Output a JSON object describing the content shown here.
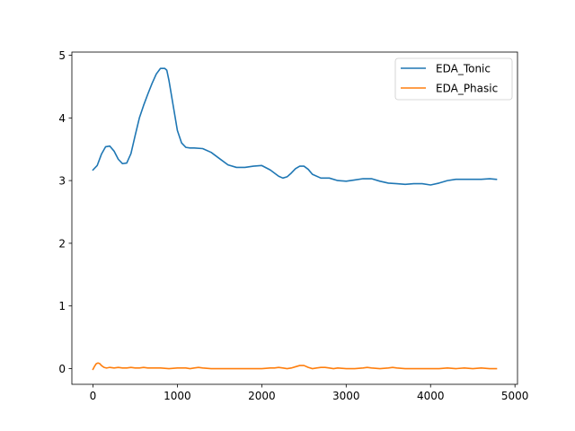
{
  "chart_data": {
    "type": "line",
    "title": "",
    "xlabel": "",
    "ylabel": "",
    "xlim": [
      -250,
      5030
    ],
    "ylim": [
      -0.25,
      5.05
    ],
    "xticks": [
      0,
      1000,
      2000,
      3000,
      4000,
      5000
    ],
    "yticks": [
      0,
      1,
      2,
      3,
      4,
      5
    ],
    "grid": false,
    "legend_position": "top-right",
    "series": [
      {
        "name": "EDA_Tonic",
        "color": "#1f77b4",
        "x": [
          0,
          50,
          100,
          150,
          200,
          250,
          300,
          350,
          400,
          450,
          500,
          550,
          600,
          650,
          700,
          750,
          800,
          850,
          875,
          900,
          950,
          1000,
          1050,
          1100,
          1150,
          1200,
          1300,
          1400,
          1500,
          1600,
          1700,
          1800,
          1900,
          2000,
          2100,
          2200,
          2250,
          2300,
          2350,
          2400,
          2450,
          2500,
          2550,
          2600,
          2700,
          2800,
          2900,
          3000,
          3100,
          3200,
          3300,
          3400,
          3500,
          3600,
          3700,
          3800,
          3900,
          4000,
          4100,
          4200,
          4300,
          4400,
          4500,
          4600,
          4700,
          4780
        ],
        "y": [
          3.17,
          3.24,
          3.42,
          3.54,
          3.55,
          3.47,
          3.34,
          3.27,
          3.28,
          3.43,
          3.72,
          4.0,
          4.2,
          4.38,
          4.55,
          4.7,
          4.79,
          4.79,
          4.76,
          4.6,
          4.2,
          3.8,
          3.6,
          3.53,
          3.52,
          3.52,
          3.51,
          3.45,
          3.35,
          3.25,
          3.21,
          3.21,
          3.23,
          3.24,
          3.17,
          3.07,
          3.04,
          3.06,
          3.12,
          3.19,
          3.23,
          3.23,
          3.18,
          3.1,
          3.04,
          3.04,
          3.0,
          2.99,
          3.01,
          3.03,
          3.03,
          2.99,
          2.96,
          2.95,
          2.94,
          2.95,
          2.95,
          2.93,
          2.96,
          3.0,
          3.02,
          3.02,
          3.02,
          3.02,
          3.03,
          3.02
        ]
      },
      {
        "name": "EDA_Phasic",
        "color": "#ff7f0e",
        "x": [
          0,
          20,
          40,
          60,
          80,
          100,
          130,
          160,
          200,
          250,
          300,
          350,
          400,
          450,
          500,
          550,
          600,
          650,
          700,
          800,
          900,
          1000,
          1100,
          1150,
          1200,
          1250,
          1300,
          1400,
          1600,
          1800,
          2000,
          2100,
          2150,
          2200,
          2250,
          2300,
          2350,
          2400,
          2450,
          2500,
          2550,
          2600,
          2650,
          2700,
          2750,
          2800,
          2850,
          2900,
          3000,
          3100,
          3200,
          3250,
          3300,
          3400,
          3500,
          3550,
          3600,
          3700,
          3800,
          3900,
          4000,
          4100,
          4200,
          4300,
          4400,
          4500,
          4600,
          4700,
          4780
        ],
        "y": [
          -0.01,
          0.04,
          0.08,
          0.09,
          0.08,
          0.05,
          0.02,
          0.01,
          0.02,
          0.01,
          0.02,
          0.01,
          0.01,
          0.02,
          0.01,
          0.01,
          0.02,
          0.01,
          0.01,
          0.01,
          0.0,
          0.01,
          0.01,
          0.0,
          0.01,
          0.02,
          0.01,
          0.0,
          0.0,
          0.0,
          0.0,
          0.01,
          0.01,
          0.02,
          0.01,
          0.0,
          0.01,
          0.03,
          0.05,
          0.05,
          0.02,
          0.0,
          0.01,
          0.02,
          0.02,
          0.01,
          0.0,
          0.01,
          0.0,
          0.0,
          0.01,
          0.02,
          0.01,
          0.0,
          0.01,
          0.02,
          0.01,
          0.0,
          0.0,
          0.0,
          0.0,
          0.0,
          0.01,
          0.0,
          0.01,
          0.0,
          0.01,
          0.0,
          0.0
        ]
      }
    ]
  }
}
